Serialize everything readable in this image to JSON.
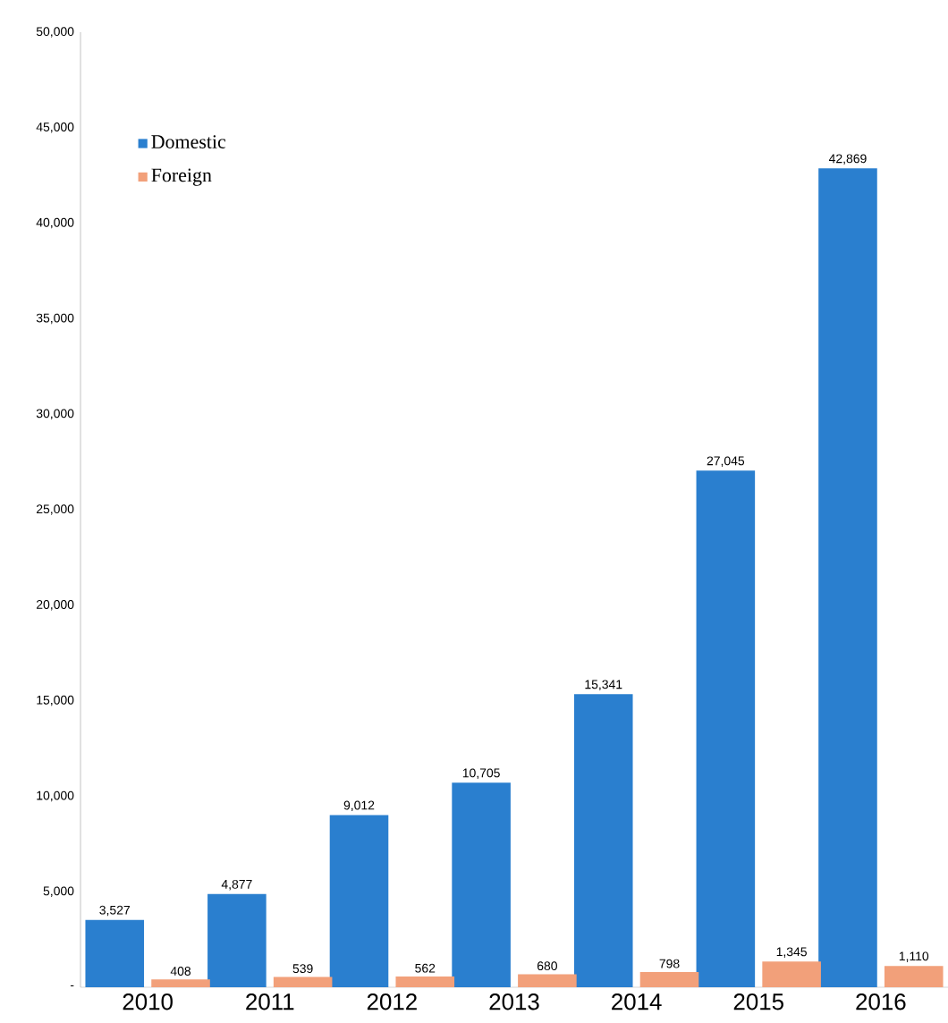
{
  "chart_data": {
    "type": "bar",
    "categories": [
      "2010",
      "2011",
      "2012",
      "2013",
      "2014",
      "2015",
      "2016"
    ],
    "series": [
      {
        "name": "Domestic",
        "color": "#2a7fcf",
        "values": [
          3527,
          4877,
          9012,
          10705,
          15341,
          27045,
          42869
        ],
        "value_labels": [
          "3,527",
          "4,877",
          "9,012",
          "10,705",
          "15,341",
          "27,045",
          "42,869"
        ]
      },
      {
        "name": "Foreign",
        "color": "#f2a07a",
        "values": [
          408,
          539,
          562,
          680,
          798,
          1345,
          1110
        ],
        "value_labels": [
          "408",
          "539",
          "562",
          "680",
          "798",
          "1,345",
          "1,110"
        ]
      }
    ],
    "ylim": [
      0,
      50000
    ],
    "yticks": [
      {
        "value": 0,
        "label": "-"
      },
      {
        "value": 5000,
        "label": "5,000"
      },
      {
        "value": 10000,
        "label": "10,000"
      },
      {
        "value": 15000,
        "label": "15,000"
      },
      {
        "value": 20000,
        "label": "20,000"
      },
      {
        "value": 25000,
        "label": "25,000"
      },
      {
        "value": 30000,
        "label": "30,000"
      },
      {
        "value": 35000,
        "label": "35,000"
      },
      {
        "value": 40000,
        "label": "40,000"
      },
      {
        "value": 45000,
        "label": "45,000"
      },
      {
        "value": 50000,
        "label": "50,000"
      }
    ],
    "grid": false,
    "legend": "top left"
  }
}
